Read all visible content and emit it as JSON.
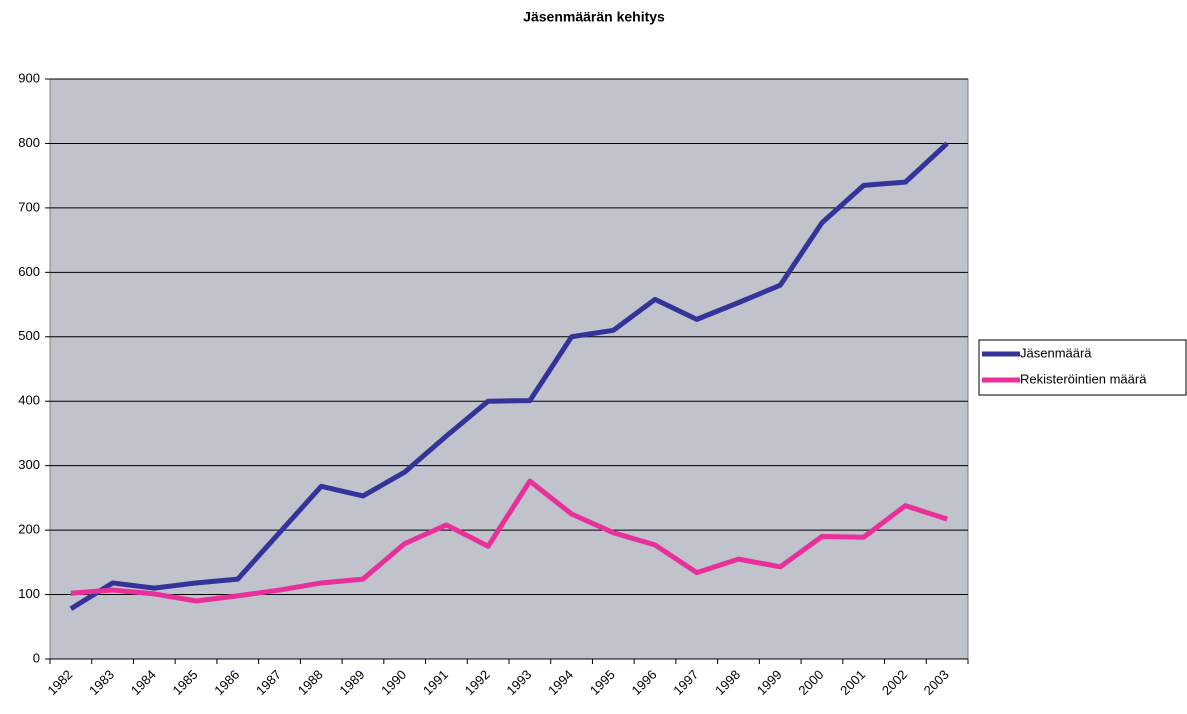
{
  "chart_data": {
    "type": "line",
    "title": "Jäsenmäärän kehitys",
    "categories": [
      "1982",
      "1983",
      "1984",
      "1985",
      "1986",
      "1987",
      "1988",
      "1989",
      "1990",
      "1991",
      "1992",
      "1993",
      "1994",
      "1995",
      "1996",
      "1997",
      "1998",
      "1999",
      "2000",
      "2001",
      "2002",
      "2003"
    ],
    "series": [
      {
        "name": "Jäsenmäärä",
        "color": "#333399",
        "values": [
          78,
          118,
          110,
          118,
          124,
          196,
          268,
          253,
          290,
          346,
          400,
          401,
          500,
          510,
          558,
          527,
          553,
          580,
          677,
          735,
          740,
          800
        ]
      },
      {
        "name": "Rekisteröintien määrä",
        "color": "#e8309a",
        "values": [
          102,
          107,
          101,
          90,
          98,
          107,
          118,
          124,
          179,
          208,
          175,
          276,
          225,
          196,
          177,
          134,
          155,
          143,
          190,
          189,
          238,
          217
        ]
      }
    ],
    "ylim": [
      0,
      900
    ],
    "yticks": [
      0,
      100,
      200,
      300,
      400,
      500,
      600,
      700,
      800,
      900
    ],
    "grid": true,
    "legend": "right"
  }
}
